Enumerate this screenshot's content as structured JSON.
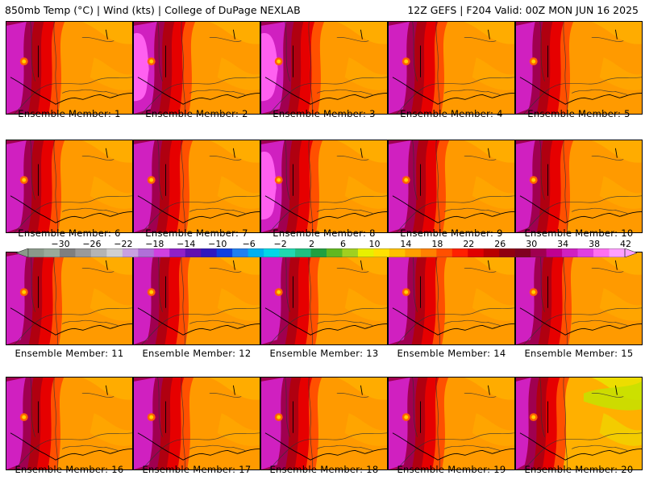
{
  "header": {
    "left": "850mb Temp (°C) | Wind (kts) | College of DuPage NEXLAB",
    "right": "12Z GEFS | F204 Valid: 00Z MON JUN 16 2025"
  },
  "panels": [
    {
      "caption": "Ensemble Member: 1",
      "warmth": 0.55
    },
    {
      "caption": "Ensemble Member: 2",
      "warmth": 0.75
    },
    {
      "caption": "Ensemble Member: 3",
      "warmth": 0.85
    },
    {
      "caption": "Ensemble Member: 4",
      "warmth": 0.6
    },
    {
      "caption": "Ensemble Member: 5",
      "warmth": 0.5
    },
    {
      "caption": "Ensemble Member: 6",
      "warmth": 0.55
    },
    {
      "caption": "Ensemble Member: 7",
      "warmth": 0.6
    },
    {
      "caption": "Ensemble Member: 8",
      "warmth": 0.75
    },
    {
      "caption": "Ensemble Member: 9",
      "warmth": 0.7
    },
    {
      "caption": "Ensemble Member: 10",
      "warmth": 0.5
    },
    {
      "caption": "Ensemble Member: 11",
      "warmth": 0.6
    },
    {
      "caption": "Ensemble Member: 12",
      "warmth": 0.55
    },
    {
      "caption": "Ensemble Member: 13",
      "warmth": 0.7
    },
    {
      "caption": "Ensemble Member: 14",
      "warmth": 0.65
    },
    {
      "caption": "Ensemble Member: 15",
      "warmth": 0.6
    },
    {
      "caption": "Ensemble Member: 16",
      "warmth": 0.5
    },
    {
      "caption": "Ensemble Member: 17",
      "warmth": 0.65
    },
    {
      "caption": "Ensemble Member: 18",
      "warmth": 0.7
    },
    {
      "caption": "Ensemble Member: 19",
      "warmth": 0.65
    },
    {
      "caption": "Ensemble Member: 20",
      "warmth": 0.25
    }
  ],
  "colorbar": {
    "labels": [
      "−30",
      "−26",
      "−22",
      "−18",
      "−14",
      "−10",
      "−6",
      "−2",
      "2",
      "6",
      "10",
      "14",
      "18",
      "22",
      "26",
      "30",
      "34",
      "38",
      "42"
    ],
    "colors": [
      "#8a9a8a",
      "#9aaa9a",
      "#7f7f7f",
      "#9a9a9a",
      "#b4b4b4",
      "#d0d0d0",
      "#c8a0e0",
      "#b070d8",
      "#d040e0",
      "#9020c8",
      "#6010b0",
      "#3018c0",
      "#1040e0",
      "#2080f0",
      "#00b0f0",
      "#00d8e8",
      "#20d8b0",
      "#20c080",
      "#20a040",
      "#60b820",
      "#a0d020",
      "#e8f000",
      "#ffe000",
      "#ffc000",
      "#ffa000",
      "#ff8000",
      "#ff5000",
      "#ff2000",
      "#e00000",
      "#b80000",
      "#900010",
      "#800020",
      "#a00050",
      "#c00090",
      "#d020c0",
      "#e040e0",
      "#ff70f0",
      "#ffa0ff"
    ]
  }
}
